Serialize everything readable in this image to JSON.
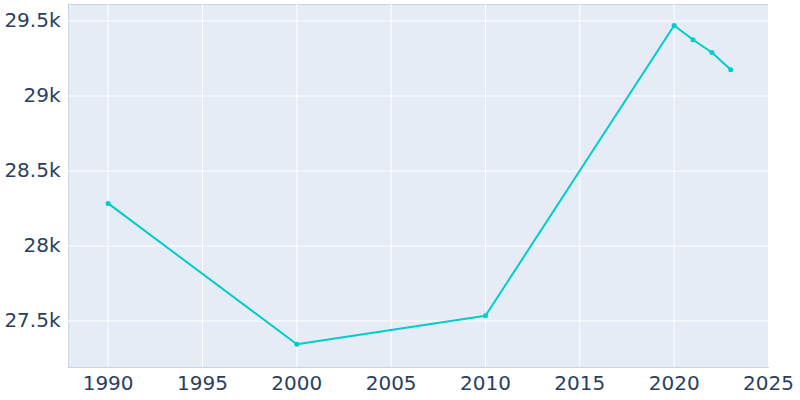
{
  "chart_data": {
    "type": "line",
    "x": [
      1990,
      2000,
      2010,
      2020,
      2021,
      2022,
      2023
    ],
    "values": [
      28284,
      27345,
      27535,
      29470,
      29375,
      29290,
      29175
    ],
    "color": "#00cccc",
    "marker": "circle",
    "xlim": [
      1987.9,
      2025
    ],
    "xticks": [
      1990,
      1995,
      2000,
      2005,
      2010,
      2015,
      2020,
      2025
    ],
    "ylim": [
      27190,
      29610
    ],
    "yticks": [
      {
        "value": 27500,
        "label": "27.5k"
      },
      {
        "value": 28000,
        "label": "28k"
      },
      {
        "value": 28500,
        "label": "28.5k"
      },
      {
        "value": 29000,
        "label": "29k"
      },
      {
        "value": 29500,
        "label": "29.5k"
      }
    ],
    "grid": true
  }
}
